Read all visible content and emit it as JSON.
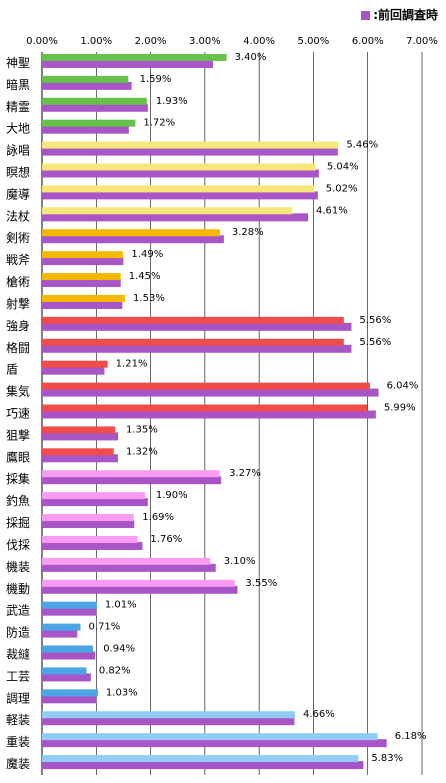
{
  "legend": {
    "label": ":前回調査時"
  },
  "chart_data": {
    "type": "bar",
    "orientation": "horizontal",
    "xlim": [
      0,
      7
    ],
    "x_ticks": [
      "0.00%",
      "1.00%",
      "2.00%",
      "3.00%",
      "4.00%",
      "5.00%",
      "6.00%",
      "7.00%"
    ],
    "grid": true,
    "legend_position": "top-right",
    "previous_color": "#a855c8",
    "categories": [
      "神聖",
      "暗黒",
      "精霊",
      "大地",
      "詠唱",
      "瞑想",
      "魔導",
      "法杖",
      "剣術",
      "戦斧",
      "槍術",
      "射撃",
      "強身",
      "格闘",
      "盾",
      "集気",
      "巧速",
      "狙撃",
      "鷹眼",
      "採集",
      "釣魚",
      "採掘",
      "伐採",
      "機装",
      "機動",
      "武造",
      "防造",
      "裁縫",
      "工芸",
      "調理",
      "軽装",
      "重装",
      "魔装"
    ],
    "colors": [
      "#66c24a",
      "#66c24a",
      "#66c24a",
      "#66c24a",
      "#f7e77a",
      "#f7e77a",
      "#f7e77a",
      "#f7e77a",
      "#f5b800",
      "#f5b800",
      "#f5b800",
      "#f5b800",
      "#f04c4c",
      "#f04c4c",
      "#f04c4c",
      "#f04c4c",
      "#f04c4c",
      "#f04c4c",
      "#f04c4c",
      "#f79cf0",
      "#f79cf0",
      "#f79cf0",
      "#f79cf0",
      "#f79cf0",
      "#f79cf0",
      "#4ca6e6",
      "#4ca6e6",
      "#4ca6e6",
      "#4ca6e6",
      "#4ca6e6",
      "#92ccf5",
      "#92ccf5",
      "#92ccf5"
    ],
    "current": [
      3.4,
      1.59,
      1.93,
      1.72,
      5.46,
      5.04,
      5.02,
      4.61,
      3.28,
      1.49,
      1.45,
      1.53,
      5.56,
      5.56,
      1.21,
      6.04,
      5.99,
      1.35,
      1.32,
      3.27,
      1.9,
      1.69,
      1.76,
      3.1,
      3.55,
      1.01,
      0.71,
      0.94,
      0.82,
      1.03,
      4.66,
      6.18,
      5.83
    ],
    "labels": [
      "3.40%",
      "1.59%",
      "1.93%",
      "1.72%",
      "5.46%",
      "5.04%",
      "5.02%",
      "4.61%",
      "3.28%",
      "1.49%",
      "1.45%",
      "1.53%",
      "5.56%",
      "5.56%",
      "1.21%",
      "6.04%",
      "5.99%",
      "1.35%",
      "1.32%",
      "3.27%",
      "1.90%",
      "1.69%",
      "1.76%",
      "3.10%",
      "3.55%",
      "1.01%",
      "0.71%",
      "0.94%",
      "0.82%",
      "1.03%",
      "4.66%",
      "6.18%",
      "5.83%"
    ],
    "previous": [
      3.15,
      1.65,
      1.95,
      1.6,
      5.45,
      5.1,
      5.08,
      4.9,
      3.35,
      1.5,
      1.45,
      1.48,
      5.7,
      5.7,
      1.15,
      6.2,
      6.15,
      1.4,
      1.4,
      3.3,
      1.95,
      1.7,
      1.85,
      3.2,
      3.6,
      1.0,
      0.65,
      0.98,
      0.9,
      1.0,
      4.65,
      6.35,
      5.92
    ]
  }
}
